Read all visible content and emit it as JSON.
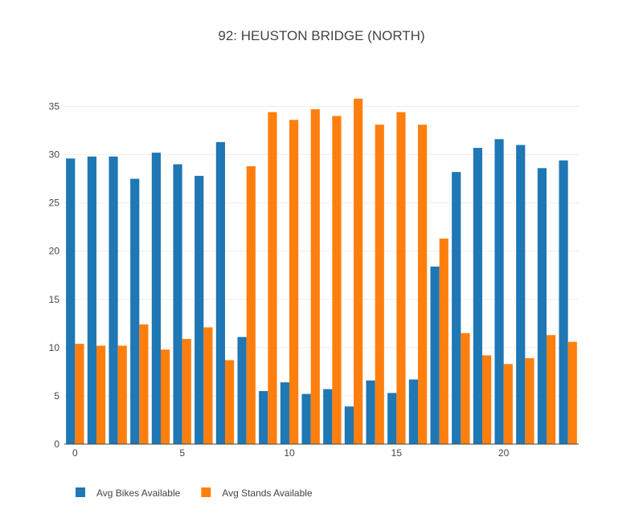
{
  "chart_data": {
    "type": "bar",
    "title": "92: HEUSTON BRIDGE (NORTH)",
    "xlabel": "",
    "ylabel": "",
    "x": [
      0,
      1,
      2,
      3,
      4,
      5,
      6,
      7,
      8,
      9,
      10,
      11,
      12,
      13,
      14,
      15,
      16,
      17,
      18,
      19,
      20,
      21,
      22,
      23
    ],
    "x_ticks": [
      0,
      5,
      10,
      15,
      20
    ],
    "y_ticks": [
      0,
      5,
      10,
      15,
      20,
      25,
      30,
      35
    ],
    "xlim": [
      -0.5,
      23.5
    ],
    "ylim": [
      0,
      37.7
    ],
    "grid": true,
    "legend_position": "bottom-left",
    "series": [
      {
        "name": "Avg Bikes Available",
        "color": "#1f77b4",
        "values": [
          29.6,
          29.8,
          29.8,
          27.5,
          30.2,
          29.0,
          27.8,
          31.3,
          11.1,
          5.5,
          6.4,
          5.2,
          5.7,
          3.9,
          6.6,
          5.3,
          6.7,
          18.4,
          28.2,
          30.7,
          31.6,
          31.0,
          28.6,
          29.4
        ]
      },
      {
        "name": "Avg Stands Available",
        "color": "#ff7f0e",
        "values": [
          10.4,
          10.2,
          10.2,
          12.4,
          9.8,
          10.9,
          12.1,
          8.7,
          28.8,
          34.4,
          33.6,
          34.7,
          34.0,
          35.8,
          33.1,
          34.4,
          33.1,
          21.3,
          11.5,
          9.2,
          8.3,
          8.9,
          11.3,
          10.6
        ]
      }
    ]
  }
}
